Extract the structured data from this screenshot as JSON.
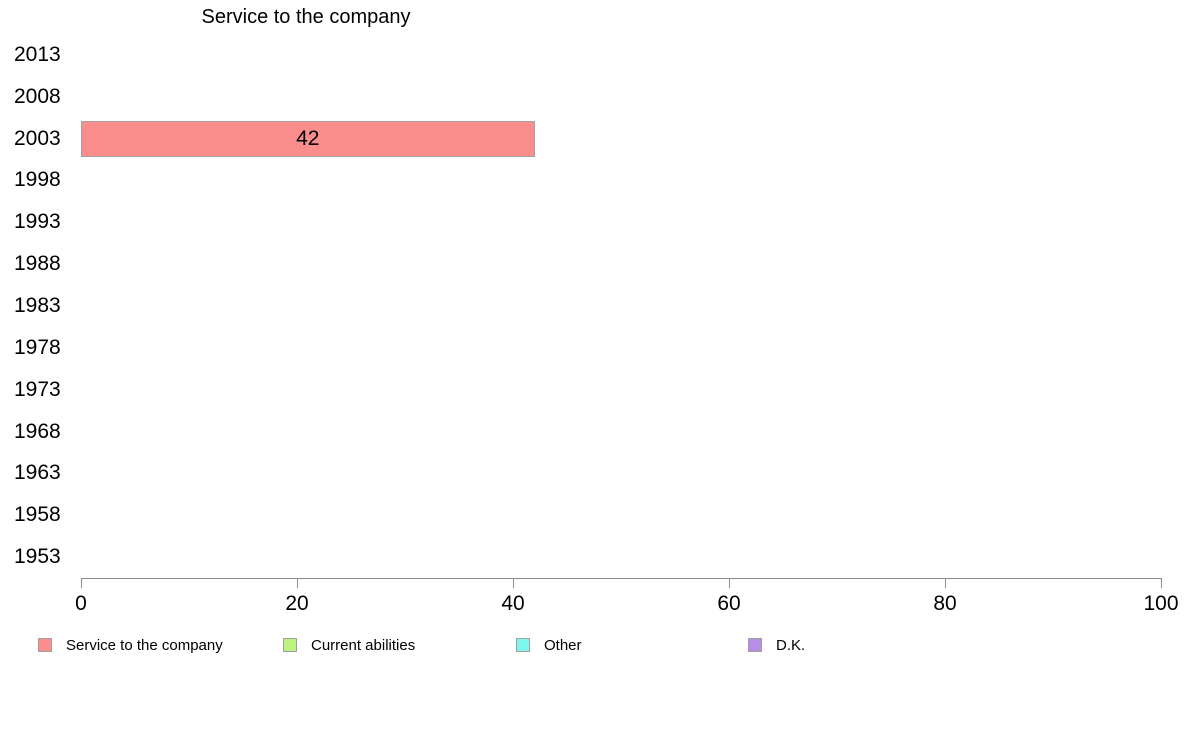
{
  "chart_data": {
    "type": "bar",
    "orientation": "horizontal",
    "title": "Service to the company",
    "categories": [
      "2013",
      "2008",
      "2003",
      "1998",
      "1993",
      "1988",
      "1983",
      "1978",
      "1973",
      "1968",
      "1963",
      "1958",
      "1953"
    ],
    "series": [
      {
        "name": "Service to the company",
        "color": "#fb8d8d",
        "values": [
          null,
          null,
          42,
          null,
          null,
          null,
          null,
          null,
          null,
          null,
          null,
          null,
          null
        ]
      },
      {
        "name": "Current abilities",
        "color": "#bef27f",
        "values": [
          null,
          null,
          null,
          null,
          null,
          null,
          null,
          null,
          null,
          null,
          null,
          null,
          null
        ]
      },
      {
        "name": "Other",
        "color": "#7ff7f0",
        "values": [
          null,
          null,
          null,
          null,
          null,
          null,
          null,
          null,
          null,
          null,
          null,
          null,
          null
        ]
      },
      {
        "name": "D.K.",
        "color": "#b78de6",
        "values": [
          null,
          null,
          null,
          null,
          null,
          null,
          null,
          null,
          null,
          null,
          null,
          null,
          null
        ]
      }
    ],
    "xlim": [
      0,
      100
    ],
    "xticks": [
      0,
      20,
      40,
      60,
      80,
      100
    ],
    "grid": false,
    "legend_position": "bottom",
    "bar_value_labels": true
  },
  "colors": {
    "bar_border": "#a0a0a0",
    "axis": "#8c8c8c",
    "text": "#000000",
    "background": "#ffffff"
  }
}
